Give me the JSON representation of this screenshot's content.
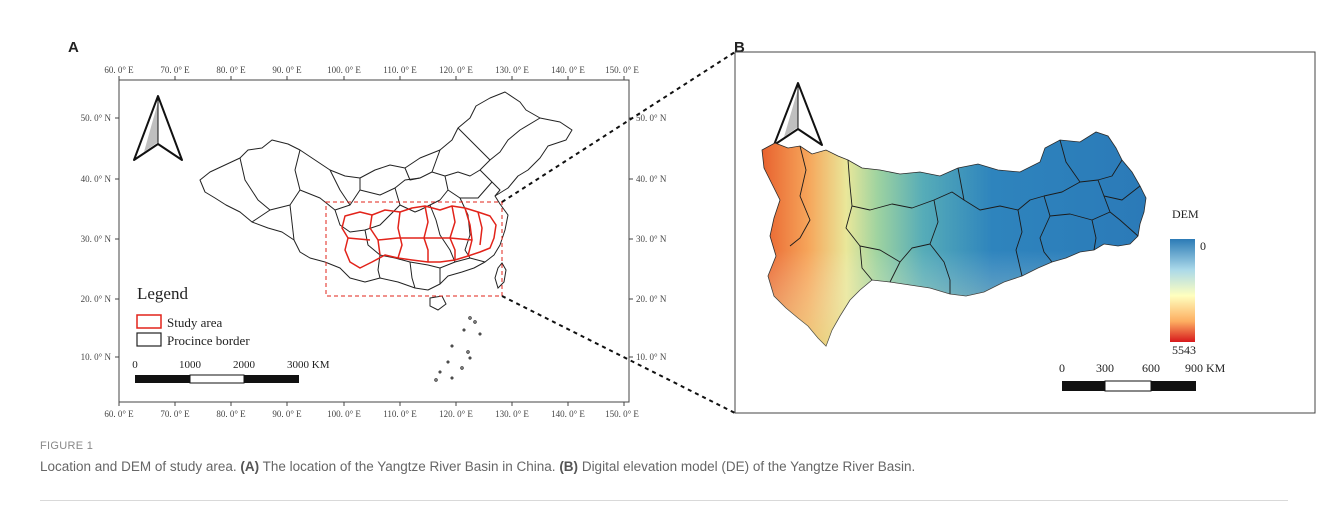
{
  "panel_a": {
    "letter": "A",
    "top_lon_ticks": [
      "60. 0° E",
      "70. 0° E",
      "80. 0° E",
      "90. 0° E",
      "100. 0° E",
      "110. 0° E",
      "120. 0° E",
      "130. 0° E",
      "140. 0° E",
      "150. 0° E"
    ],
    "bottom_lon_ticks": [
      "60. 0° E",
      "70. 0° E",
      "80. 0° E",
      "90. 0° E",
      "100. 0° E",
      "110. 0° E",
      "120. 0° E",
      "130. 0° E",
      "140. 0° E",
      "150. 0° E"
    ],
    "left_lat_ticks": [
      "50. 0° N",
      "40. 0° N",
      "30. 0° N",
      "20. 0° N",
      "10. 0° N"
    ],
    "right_lat_ticks": [
      "50. 0° N",
      "40. 0° N",
      "30. 0° N",
      "20. 0° N",
      "10. 0° N"
    ],
    "legend": {
      "title": "Legend",
      "items": [
        {
          "label": "Study area",
          "color": "#e2231a"
        },
        {
          "label": "Procince border",
          "color": "#222222"
        }
      ]
    },
    "scale_labels": [
      "0",
      "1000",
      "2000",
      "3000 KM"
    ]
  },
  "panel_b": {
    "letter": "B",
    "dem_legend": {
      "title": "DEM",
      "low": "0",
      "high": "5543",
      "colors": [
        "#2c7bb6",
        "#abd9e9",
        "#ffffbf",
        "#fdae61",
        "#d7191c"
      ]
    },
    "scale_labels": [
      "0",
      "300",
      "600",
      "900 KM"
    ]
  },
  "caption": {
    "label": "FIGURE 1",
    "intro": "Location and DEM of study area. ",
    "a_tag": "(A)",
    "a_text": " The location of the Yangtze River Basin in China. ",
    "b_tag": "(B)",
    "b_text": " Digital elevation model (DE) of the Yangtze River Basin."
  }
}
